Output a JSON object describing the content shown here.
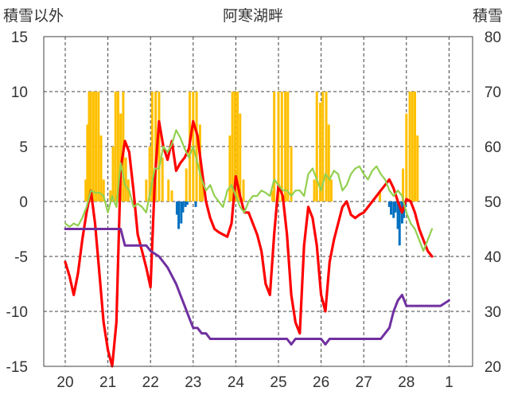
{
  "chart_data": {
    "type": "bar+line",
    "title": "阿寒湖畔",
    "left_axis": {
      "label": "積雪以外",
      "range": [
        -15,
        15
      ],
      "ticks": [
        15,
        10,
        5,
        0,
        -5,
        -10,
        -15
      ]
    },
    "right_axis": {
      "label": "積雪",
      "range": [
        20,
        80
      ],
      "ticks": [
        80,
        70,
        60,
        50,
        40,
        30,
        20
      ]
    },
    "x_ticks": [
      "20",
      "21",
      "22",
      "23",
      "24",
      "25",
      "26",
      "27",
      "28",
      "1"
    ],
    "grid": true,
    "colors": {
      "temperature": "#ff0000",
      "humidity_like": "#92d050",
      "snow_depth": "#7030a0",
      "bars_positive": "#ffc000",
      "bars_negative": "#0070c0"
    },
    "series": [
      {
        "key": "temperature",
        "axis": "left",
        "kind": "line",
        "points": [
          [
            20.0,
            -5.5
          ],
          [
            20.1,
            -6.8
          ],
          [
            20.2,
            -8.5
          ],
          [
            20.3,
            -6.5
          ],
          [
            20.4,
            -3.5
          ],
          [
            20.5,
            -1.0
          ],
          [
            20.6,
            1.0
          ],
          [
            20.7,
            -2.0
          ],
          [
            20.8,
            -6.5
          ],
          [
            20.9,
            -11.0
          ],
          [
            21.0,
            -13.5
          ],
          [
            21.1,
            -15.0
          ],
          [
            21.2,
            -11.0
          ],
          [
            21.3,
            3.0
          ],
          [
            21.4,
            5.5
          ],
          [
            21.5,
            4.5
          ],
          [
            21.6,
            1.0
          ],
          [
            21.7,
            -3.0
          ],
          [
            21.8,
            -4.5
          ],
          [
            21.9,
            -6.0
          ],
          [
            22.0,
            -7.8
          ],
          [
            22.1,
            2.0
          ],
          [
            22.2,
            7.3
          ],
          [
            22.3,
            5.0
          ],
          [
            22.4,
            3.8
          ],
          [
            22.5,
            5.5
          ],
          [
            22.6,
            2.8
          ],
          [
            22.7,
            3.5
          ],
          [
            22.8,
            4.0
          ],
          [
            22.9,
            4.8
          ],
          [
            23.0,
            7.3
          ],
          [
            23.1,
            6.0
          ],
          [
            23.2,
            3.0
          ],
          [
            23.3,
            0.0
          ],
          [
            23.4,
            -1.5
          ],
          [
            23.5,
            -2.5
          ],
          [
            23.6,
            -2.8
          ],
          [
            23.7,
            -3.0
          ],
          [
            23.8,
            -3.2
          ],
          [
            23.9,
            -2.0
          ],
          [
            24.0,
            2.3
          ],
          [
            24.1,
            0.5
          ],
          [
            24.2,
            -1.0
          ],
          [
            24.3,
            -1.0
          ],
          [
            24.4,
            -2.0
          ],
          [
            24.5,
            -3.0
          ],
          [
            24.6,
            -4.5
          ],
          [
            24.7,
            -7.5
          ],
          [
            24.8,
            -8.5
          ],
          [
            24.9,
            -3.0
          ],
          [
            25.0,
            1.5
          ],
          [
            25.1,
            0.5
          ],
          [
            25.2,
            -3.0
          ],
          [
            25.3,
            -8.5
          ],
          [
            25.4,
            -11.0
          ],
          [
            25.5,
            -12.0
          ],
          [
            25.6,
            -4.0
          ],
          [
            25.7,
            -0.5
          ],
          [
            25.8,
            -1.5
          ],
          [
            25.9,
            -4.0
          ],
          [
            26.0,
            -8.5
          ],
          [
            26.1,
            -10.0
          ],
          [
            26.2,
            -5.5
          ],
          [
            26.3,
            -3.5
          ],
          [
            26.4,
            -2.0
          ],
          [
            26.5,
            -0.5
          ],
          [
            26.6,
            0.0
          ],
          [
            26.7,
            -1.2
          ],
          [
            26.8,
            -1.5
          ],
          [
            26.9,
            -1.2
          ],
          [
            27.0,
            -1.0
          ],
          [
            27.1,
            -0.5
          ],
          [
            27.2,
            0.0
          ],
          [
            27.3,
            0.5
          ],
          [
            27.4,
            1.0
          ],
          [
            27.5,
            1.5
          ],
          [
            27.6,
            2.0
          ],
          [
            27.7,
            1.2
          ],
          [
            27.8,
            0.0
          ],
          [
            27.9,
            -1.0
          ],
          [
            28.0,
            0.2
          ],
          [
            28.1,
            0.0
          ],
          [
            28.2,
            -1.0
          ],
          [
            28.3,
            -2.5
          ],
          [
            28.4,
            -3.5
          ],
          [
            28.5,
            -4.5
          ],
          [
            28.6,
            -5.0
          ]
        ]
      },
      {
        "key": "humidity_like",
        "axis": "left",
        "kind": "line",
        "points": [
          [
            20.0,
            -2.0
          ],
          [
            20.1,
            -2.3
          ],
          [
            20.2,
            -2.0
          ],
          [
            20.3,
            -2.2
          ],
          [
            20.4,
            -1.5
          ],
          [
            20.5,
            -0.5
          ],
          [
            20.6,
            1.0
          ],
          [
            20.7,
            0.8
          ],
          [
            20.8,
            0.8
          ],
          [
            20.9,
            0.5
          ],
          [
            21.0,
            -1.0
          ],
          [
            21.1,
            0.5
          ],
          [
            21.2,
            -0.5
          ],
          [
            21.3,
            3.5
          ],
          [
            21.4,
            1.5
          ],
          [
            21.5,
            1.0
          ],
          [
            21.6,
            -0.5
          ],
          [
            21.7,
            -0.2
          ],
          [
            21.8,
            -0.5
          ],
          [
            21.9,
            -1.0
          ],
          [
            22.0,
            1.0
          ],
          [
            22.1,
            3.0
          ],
          [
            22.2,
            3.0
          ],
          [
            22.3,
            5.0
          ],
          [
            22.4,
            4.5
          ],
          [
            22.5,
            5.2
          ],
          [
            22.6,
            6.5
          ],
          [
            22.7,
            5.8
          ],
          [
            22.8,
            4.8
          ],
          [
            22.9,
            4.0
          ],
          [
            23.0,
            5.0
          ],
          [
            23.1,
            3.5
          ],
          [
            23.2,
            2.0
          ],
          [
            23.3,
            1.0
          ],
          [
            23.4,
            1.5
          ],
          [
            23.5,
            0.5
          ],
          [
            23.6,
            0.0
          ],
          [
            23.7,
            -0.5
          ],
          [
            23.8,
            1.0
          ],
          [
            23.9,
            1.5
          ],
          [
            24.0,
            0.5
          ],
          [
            24.1,
            -0.5
          ],
          [
            24.2,
            -1.0
          ],
          [
            24.3,
            0.0
          ],
          [
            24.4,
            0.5
          ],
          [
            24.5,
            0.5
          ],
          [
            24.6,
            1.0
          ],
          [
            24.7,
            0.8
          ],
          [
            24.8,
            0.5
          ],
          [
            24.9,
            2.0
          ],
          [
            25.0,
            1.5
          ],
          [
            25.1,
            1.0
          ],
          [
            25.2,
            1.0
          ],
          [
            25.3,
            0.5
          ],
          [
            25.4,
            1.0
          ],
          [
            25.5,
            1.0
          ],
          [
            25.6,
            0.5
          ],
          [
            25.7,
            2.5
          ],
          [
            25.8,
            3.0
          ],
          [
            25.9,
            2.0
          ],
          [
            26.0,
            1.0
          ],
          [
            26.1,
            2.5
          ],
          [
            26.2,
            2.0
          ],
          [
            26.3,
            2.8
          ],
          [
            26.4,
            2.5
          ],
          [
            26.5,
            1.0
          ],
          [
            26.6,
            1.5
          ],
          [
            26.7,
            2.5
          ],
          [
            26.8,
            3.0
          ],
          [
            26.9,
            3.2
          ],
          [
            27.0,
            2.5
          ],
          [
            27.1,
            2.0
          ],
          [
            27.2,
            2.8
          ],
          [
            27.3,
            3.2
          ],
          [
            27.4,
            2.5
          ],
          [
            27.5,
            2.0
          ],
          [
            27.6,
            1.0
          ],
          [
            27.7,
            0.5
          ],
          [
            27.8,
            1.0
          ],
          [
            27.9,
            0.5
          ],
          [
            28.0,
            -1.0
          ],
          [
            28.1,
            -2.0
          ],
          [
            28.2,
            -2.5
          ],
          [
            28.3,
            -3.5
          ],
          [
            28.4,
            -4.5
          ],
          [
            28.5,
            -3.5
          ],
          [
            28.6,
            -2.5
          ]
        ]
      },
      {
        "key": "snow_depth",
        "axis": "right",
        "kind": "line",
        "points": [
          [
            20.0,
            45
          ],
          [
            20.5,
            45
          ],
          [
            20.9,
            45
          ],
          [
            21.3,
            45
          ],
          [
            21.4,
            42
          ],
          [
            21.9,
            42
          ],
          [
            22.0,
            41
          ],
          [
            22.2,
            40
          ],
          [
            22.4,
            38
          ],
          [
            22.6,
            35
          ],
          [
            22.7,
            33
          ],
          [
            22.8,
            31
          ],
          [
            22.9,
            29
          ],
          [
            23.0,
            27
          ],
          [
            23.1,
            27
          ],
          [
            23.2,
            26
          ],
          [
            23.3,
            26
          ],
          [
            23.4,
            25
          ],
          [
            25.2,
            25
          ],
          [
            25.3,
            24
          ],
          [
            25.4,
            25
          ],
          [
            26.0,
            25
          ],
          [
            26.1,
            24
          ],
          [
            26.2,
            25
          ],
          [
            27.4,
            25
          ],
          [
            27.5,
            26
          ],
          [
            27.6,
            27
          ],
          [
            27.7,
            30
          ],
          [
            27.8,
            32
          ],
          [
            27.9,
            33
          ],
          [
            28.0,
            31
          ],
          [
            28.1,
            31
          ],
          [
            28.8,
            31
          ],
          [
            29.0,
            32
          ]
        ]
      }
    ],
    "bars_positive": [
      [
        20.48,
        2
      ],
      [
        20.52,
        7
      ],
      [
        20.56,
        10
      ],
      [
        20.6,
        10
      ],
      [
        20.66,
        10
      ],
      [
        20.72,
        10
      ],
      [
        20.78,
        10
      ],
      [
        20.84,
        6
      ],
      [
        20.9,
        2
      ],
      [
        21.06,
        1
      ],
      [
        21.12,
        5
      ],
      [
        21.18,
        10
      ],
      [
        21.24,
        10
      ],
      [
        21.3,
        8
      ],
      [
        21.36,
        10
      ],
      [
        21.42,
        4
      ],
      [
        21.48,
        2
      ],
      [
        21.9,
        2
      ],
      [
        21.98,
        5
      ],
      [
        22.04,
        10
      ],
      [
        22.12,
        10
      ],
      [
        22.2,
        10
      ],
      [
        22.28,
        4
      ],
      [
        22.42,
        2
      ],
      [
        22.5,
        1
      ],
      [
        22.84,
        3
      ],
      [
        22.92,
        10
      ],
      [
        23.0,
        10
      ],
      [
        23.08,
        10
      ],
      [
        23.16,
        7
      ],
      [
        23.22,
        2
      ],
      [
        23.86,
        6
      ],
      [
        23.92,
        10
      ],
      [
        23.98,
        10
      ],
      [
        24.04,
        10
      ],
      [
        24.1,
        8
      ],
      [
        24.18,
        2
      ],
      [
        24.86,
        1
      ],
      [
        24.9,
        10
      ],
      [
        25.0,
        10
      ],
      [
        25.08,
        10
      ],
      [
        25.16,
        10
      ],
      [
        25.22,
        10
      ],
      [
        25.3,
        5
      ],
      [
        25.84,
        2
      ],
      [
        25.9,
        10
      ],
      [
        25.98,
        9
      ],
      [
        26.04,
        10
      ],
      [
        26.12,
        10
      ],
      [
        26.18,
        7
      ],
      [
        26.24,
        2
      ],
      [
        27.38,
        1
      ],
      [
        27.92,
        3
      ],
      [
        28.0,
        8
      ],
      [
        28.08,
        10
      ],
      [
        28.14,
        10
      ],
      [
        28.2,
        10
      ],
      [
        28.26,
        6
      ]
    ],
    "bars_negative": [
      [
        22.62,
        -1.2
      ],
      [
        22.66,
        -2.5
      ],
      [
        22.72,
        -2.0
      ],
      [
        22.76,
        -1.0
      ],
      [
        22.82,
        -0.5
      ],
      [
        22.86,
        -0.3
      ],
      [
        23.06,
        -0.5
      ],
      [
        27.6,
        -0.5
      ],
      [
        27.64,
        -1.2
      ],
      [
        27.7,
        -1.5
      ],
      [
        27.74,
        -1.0
      ],
      [
        27.8,
        -2.5
      ],
      [
        27.84,
        -4.0
      ],
      [
        27.9,
        -2.0
      ],
      [
        27.94,
        -1.5
      ],
      [
        27.98,
        -0.5
      ]
    ]
  }
}
